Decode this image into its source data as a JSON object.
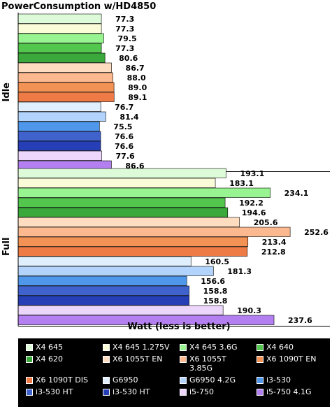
{
  "chart_data": {
    "type": "bar",
    "orientation": "horizontal",
    "title": "PowerConsumption w/HD4850",
    "xlabel": "Watt (less is better)",
    "ylabel": "",
    "xlim": [
      0,
      260
    ],
    "grid": false,
    "legend_position": "bottom",
    "groups": [
      {
        "name": "Idle",
        "values": [
          77.3,
          77.3,
          79.5,
          77.3,
          80.6,
          86.7,
          88.0,
          89.0,
          89.1,
          76.7,
          81.4,
          75.5,
          76.6,
          76.6,
          77.6,
          86.6
        ],
        "labels": [
          "77.3",
          "77.3",
          "79.5",
          "77.3",
          "80.6",
          "86.7",
          "88.0",
          "89.0",
          "89.1",
          "76.7",
          "81.4",
          "75.5",
          "76.6",
          "76.6",
          "77.6",
          "86.6"
        ]
      },
      {
        "name": "Full",
        "values": [
          193.1,
          183.1,
          234.1,
          192.2,
          194.6,
          205.6,
          252.6,
          213.4,
          212.8,
          160.5,
          181.3,
          156.6,
          158.8,
          158.8,
          190.3,
          237.6
        ],
        "labels": [
          "193.1",
          "183.1",
          "234.1",
          "192.2",
          "194.6",
          "205.6",
          "252.6",
          "213.4",
          "212.8",
          "160.5",
          "181.3",
          "156.6",
          "158.8",
          "158.8",
          "190.3",
          "237.6"
        ]
      }
    ],
    "series": [
      {
        "name": "X4 645",
        "color": "#ddfbd8"
      },
      {
        "name": "X4 645 1.275V",
        "color": "#fafcd8"
      },
      {
        "name": "X4 645 3.6G",
        "color": "#98f490"
      },
      {
        "name": "X4 640",
        "color": "#53c64e"
      },
      {
        "name": "X4 620",
        "color": "#3aa83a"
      },
      {
        "name": "X6 1055T EN",
        "color": "#fedcc0"
      },
      {
        "name": "X6 1055T 3.85G",
        "color": "#fcb98f"
      },
      {
        "name": "X6 1090T EN",
        "color": "#f39255"
      },
      {
        "name": "X6 1090T DIS",
        "color": "#ee7b45"
      },
      {
        "name": "G6950",
        "color": "#dfeffe"
      },
      {
        "name": "G6950 4.2G",
        "color": "#b2d4fc"
      },
      {
        "name": "i3-530",
        "color": "#4f97ea"
      },
      {
        "name": "i3-530 HT",
        "color": "#3f62cc"
      },
      {
        "name": "i3-530 HT",
        "color": "#263fb6"
      },
      {
        "name": "i5-750",
        "color": "#ecd6fb"
      },
      {
        "name": "i5-750 4.1G",
        "color": "#b47ff0"
      }
    ]
  }
}
